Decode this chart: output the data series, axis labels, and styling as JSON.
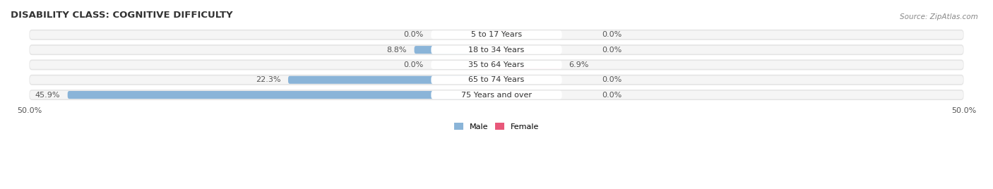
{
  "title": "DISABILITY CLASS: COGNITIVE DIFFICULTY",
  "source": "Source: ZipAtlas.com",
  "categories": [
    "5 to 17 Years",
    "18 to 34 Years",
    "35 to 64 Years",
    "65 to 74 Years",
    "75 Years and over"
  ],
  "male_values": [
    0.0,
    8.8,
    0.0,
    22.3,
    45.9
  ],
  "female_values": [
    0.0,
    0.0,
    6.9,
    0.0,
    0.0
  ],
  "male_color": "#8ab4d8",
  "female_color_light": "#f5b8c8",
  "female_color_dark": "#e8587a",
  "axis_min": -50.0,
  "axis_max": 50.0,
  "bar_height": 0.6,
  "background_color": "#ffffff",
  "row_bg_color": "#e4e4e4",
  "row_inner_color": "#f5f5f5",
  "label_bg_color": "#ffffff",
  "title_fontsize": 9.5,
  "label_fontsize": 8.0,
  "value_fontsize": 8.0,
  "tick_fontsize": 8.0
}
